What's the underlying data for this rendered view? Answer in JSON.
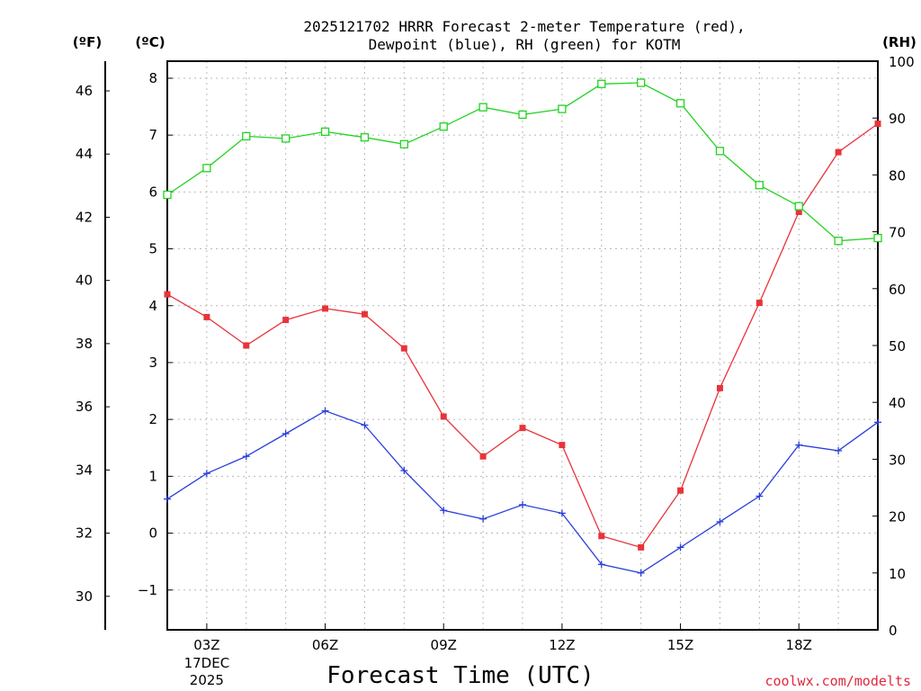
{
  "chart_data": {
    "type": "line",
    "title": "2025121702 HRRR Forecast 2-meter Temperature (red),",
    "subtitle": "Dewpoint (blue), RH (green) for KOTM",
    "xlabel": "Forecast Time (UTC)",
    "credit": "coolwx.com/modelts",
    "units": {
      "left_f": "(ºF)",
      "left_c": "(ºC)",
      "right_rh": "(RH)"
    },
    "x": [
      2,
      3,
      4,
      5,
      6,
      7,
      8,
      9,
      10,
      11,
      12,
      13,
      14,
      15,
      16,
      17,
      18,
      19,
      20
    ],
    "xlim": [
      2,
      20
    ],
    "x_ticks": [
      {
        "value": 3,
        "label": "03Z",
        "date": "17DEC",
        "year": "2025"
      },
      {
        "value": 6,
        "label": "06Z"
      },
      {
        "value": 9,
        "label": "09Z"
      },
      {
        "value": 12,
        "label": "12Z"
      },
      {
        "value": 15,
        "label": "15Z"
      },
      {
        "value": 18,
        "label": "18Z"
      }
    ],
    "y_c": {
      "lim": [
        -1.7,
        8.3
      ],
      "ticks": [
        -1,
        0,
        1,
        2,
        3,
        4,
        5,
        6,
        7,
        8
      ],
      "tick_labels": [
        "−1",
        "0",
        "1",
        "2",
        "3",
        "4",
        "5",
        "6",
        "7",
        "8"
      ]
    },
    "y_f": {
      "ticks": [
        30,
        32,
        34,
        36,
        38,
        40,
        42,
        44,
        46
      ],
      "tick_labels": [
        "30",
        "32",
        "34",
        "36",
        "38",
        "40",
        "42",
        "44",
        "46"
      ]
    },
    "y_rh": {
      "lim": [
        0,
        100
      ],
      "ticks": [
        0,
        10,
        20,
        30,
        40,
        50,
        60,
        70,
        80,
        90,
        100
      ],
      "tick_labels": [
        "0",
        "10",
        "20",
        "30",
        "40",
        "50",
        "60",
        "70",
        "80",
        "90",
        "100"
      ]
    },
    "series": [
      {
        "name": "Temperature",
        "axis": "c",
        "color": "#e8333a",
        "marker": "filled-square",
        "values": [
          4.2,
          3.8,
          3.3,
          3.75,
          3.95,
          3.85,
          3.25,
          2.05,
          1.35,
          1.85,
          1.55,
          -0.05,
          -0.25,
          0.75,
          2.55,
          4.05,
          5.65,
          6.7,
          7.2
        ]
      },
      {
        "name": "Dewpoint",
        "axis": "c",
        "color": "#2a3fd8",
        "marker": "plus",
        "values": [
          0.6,
          1.05,
          1.35,
          1.75,
          2.15,
          1.9,
          1.1,
          0.4,
          0.25,
          0.5,
          0.35,
          -0.55,
          -0.7,
          -0.25,
          0.2,
          0.65,
          1.55,
          1.45,
          1.95
        ]
      },
      {
        "name": "RH",
        "axis": "rh",
        "color": "#22d322",
        "marker": "open-square",
        "values": [
          76.5,
          81.2,
          86.8,
          86.4,
          87.6,
          86.6,
          85.4,
          88.5,
          91.9,
          90.6,
          91.6,
          96.0,
          96.2,
          92.6,
          84.2,
          78.2,
          74.5,
          68.4,
          68.9
        ]
      }
    ]
  }
}
